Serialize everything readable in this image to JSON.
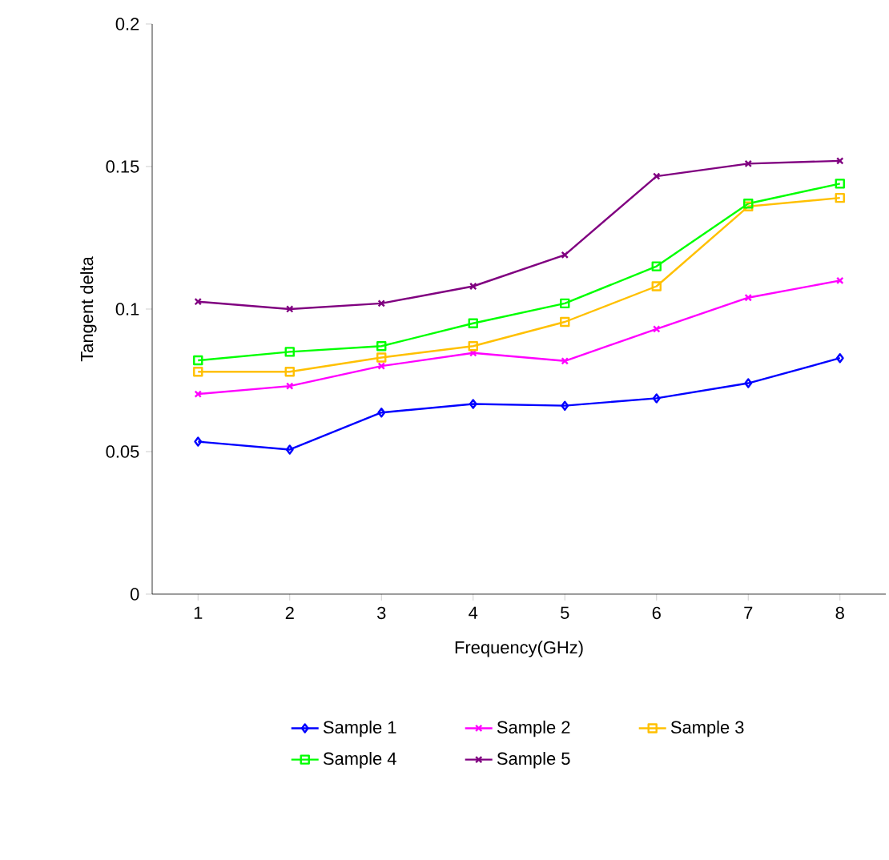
{
  "chart_data": {
    "type": "line",
    "xlabel": "Frequency(GHz)",
    "ylabel": "Tangent delta",
    "categories": [
      "1",
      "2",
      "3",
      "4",
      "5",
      "6",
      "7",
      "8"
    ],
    "ylim": [
      0,
      0.2
    ],
    "yticks": [
      0,
      0.05,
      0.1,
      0.15,
      0.2
    ],
    "grid": false,
    "legend": "bottom",
    "series": [
      {
        "name": "Sample 1",
        "color": "#0000ff",
        "marker": "diamond",
        "values": [
          0.0535,
          0.0507,
          0.0637,
          0.0667,
          0.0661,
          0.0687,
          0.074,
          0.0828
        ]
      },
      {
        "name": "Sample 2",
        "color": "#ff00ff",
        "marker": "cross",
        "values": [
          0.0702,
          0.073,
          0.08,
          0.0846,
          0.0818,
          0.093,
          0.104,
          0.11
        ]
      },
      {
        "name": "Sample 3",
        "color": "#ffc000",
        "marker": "square",
        "values": [
          0.078,
          0.078,
          0.083,
          0.087,
          0.0955,
          0.108,
          0.136,
          0.139
        ]
      },
      {
        "name": "Sample 4",
        "color": "#00ff00",
        "marker": "square",
        "values": [
          0.082,
          0.085,
          0.087,
          0.095,
          0.102,
          0.115,
          0.137,
          0.144
        ]
      },
      {
        "name": "Sample 5",
        "color": "#800080",
        "marker": "cross",
        "values": [
          0.1026,
          0.1,
          0.102,
          0.108,
          0.119,
          0.1466,
          0.151,
          0.152
        ]
      }
    ]
  }
}
